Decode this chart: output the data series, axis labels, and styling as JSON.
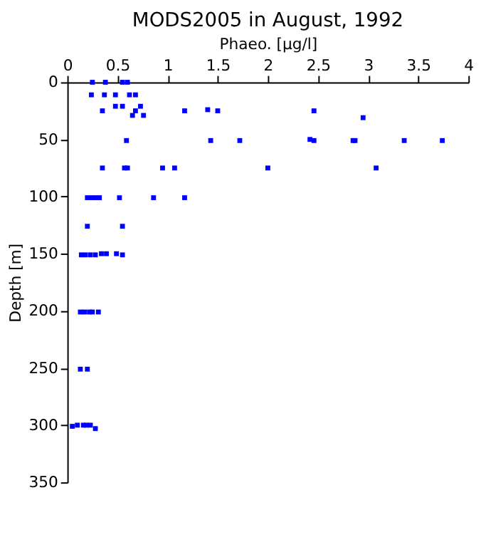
{
  "chart_data": {
    "type": "scatter",
    "title": "MODS2005 in August, 1992",
    "xlabel": "Phaeo. [µg/l]",
    "ylabel": "Depth [m]",
    "x": [
      0.25,
      0.38,
      0.55,
      0.6,
      0.24,
      0.37,
      0.48,
      0.62,
      0.68,
      0.48,
      0.55,
      0.73,
      0.35,
      0.68,
      1.17,
      1.4,
      1.5,
      0.65,
      0.76,
      2.46,
      2.95,
      0.59,
      1.43,
      1.72,
      2.42,
      2.46,
      2.85,
      2.87,
      3.36,
      3.74,
      0.35,
      0.57,
      0.6,
      0.95,
      1.07,
      2.0,
      3.08,
      0.2,
      0.24,
      0.28,
      0.32,
      0.52,
      0.86,
      1.17,
      0.2,
      0.55,
      0.14,
      0.18,
      0.23,
      0.28,
      0.34,
      0.39,
      0.49,
      0.55,
      0.13,
      0.17,
      0.22,
      0.25,
      0.31,
      0.13,
      0.2,
      0.05,
      0.1,
      0.16,
      0.19,
      0.23,
      0.28
    ],
    "series": [
      {
        "color": "#0000ff",
        "values": [
          0,
          0,
          0,
          0,
          11,
          11,
          11,
          11,
          11,
          21,
          21,
          21,
          25,
          25,
          25,
          24,
          25,
          29,
          29,
          25,
          31,
          51,
          51,
          51,
          50,
          51,
          51,
          51,
          51,
          51,
          75,
          75,
          75,
          75,
          75,
          75,
          75,
          101,
          101,
          101,
          101,
          101,
          101,
          101,
          126,
          126,
          151,
          151,
          151,
          151,
          150,
          150,
          150,
          151,
          201,
          201,
          201,
          201,
          201,
          251,
          251,
          301,
          300,
          300,
          300,
          300,
          303
        ]
      }
    ],
    "xlim": [
      0,
      4
    ],
    "xticks": [
      0,
      0.5,
      1,
      1.5,
      2,
      2.5,
      3,
      3.5,
      4
    ],
    "ylim": [
      350,
      0
    ],
    "yticks": [
      0,
      50,
      100,
      150,
      200,
      250,
      300,
      350
    ],
    "marker": "square",
    "grid": false
  }
}
